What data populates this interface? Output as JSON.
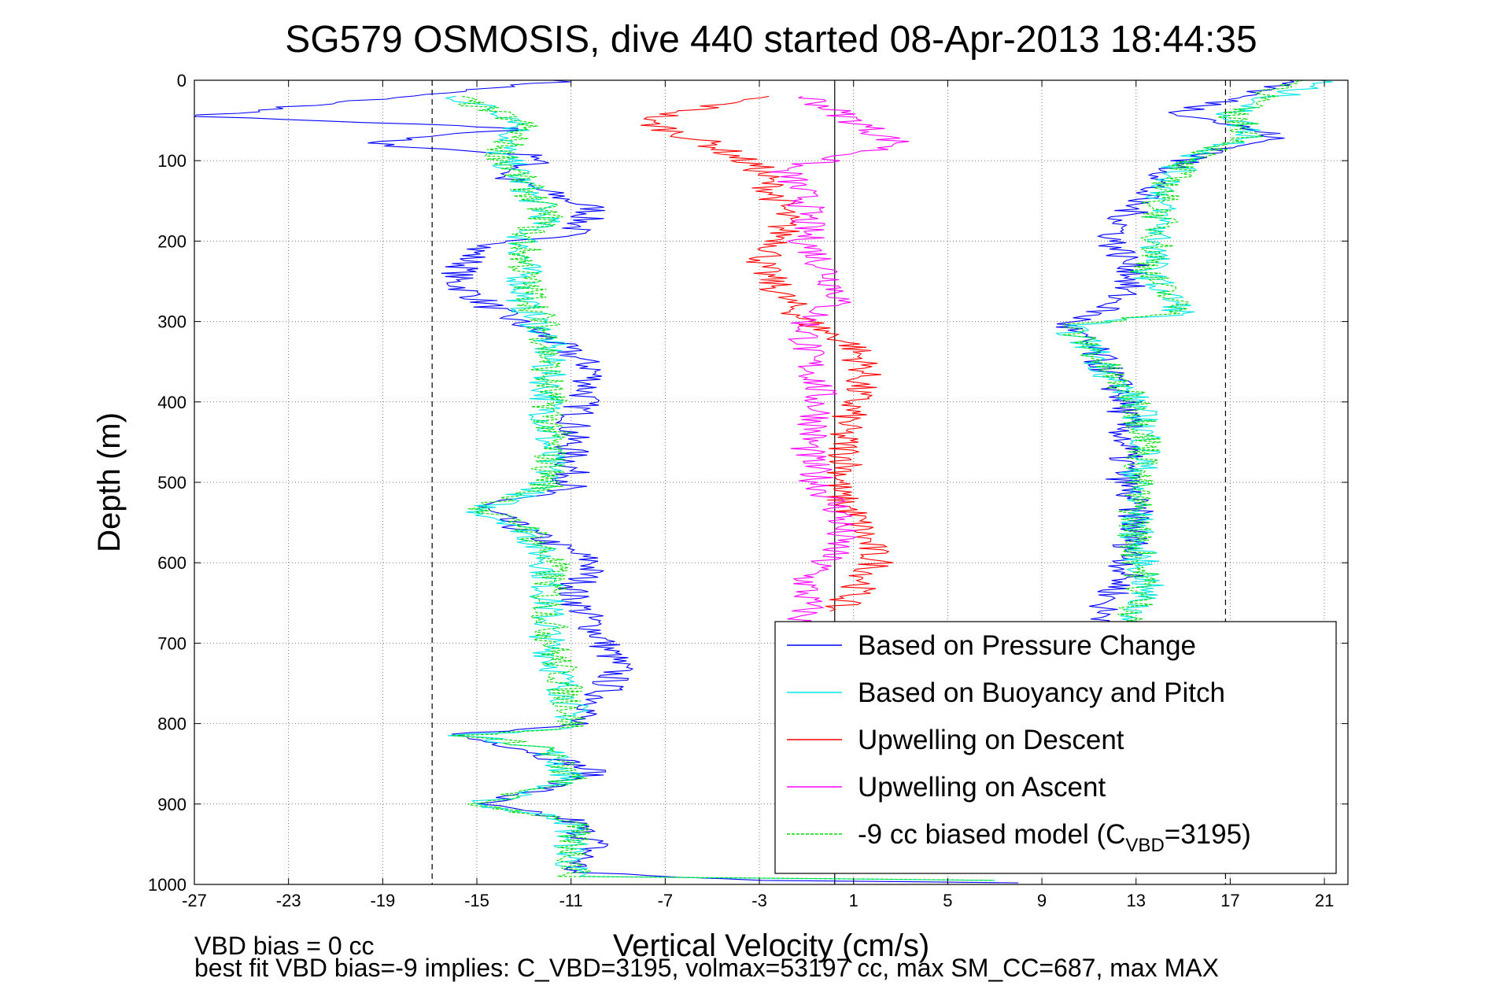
{
  "chart_data": {
    "type": "line",
    "title": "SG579 OSMOSIS, dive 440 started 08-Apr-2013 18:44:35",
    "xlabel": "Vertical Velocity (cm/s)",
    "ylabel": "Depth (m)",
    "xlim": [
      -27,
      22
    ],
    "ylim": [
      0,
      1000
    ],
    "y_reversed": true,
    "xticks": [
      -27,
      -23,
      -19,
      -15,
      -11,
      -7,
      -3,
      1,
      5,
      9,
      13,
      17,
      21
    ],
    "yticks": [
      0,
      100,
      200,
      300,
      400,
      500,
      600,
      700,
      800,
      900,
      1000
    ],
    "grid": true,
    "legend_position": "bottom-right",
    "reference_lines": [
      {
        "x": 0.2,
        "style": "solid"
      },
      {
        "x": -16.9,
        "style": "dashed"
      },
      {
        "x": 16.8,
        "style": "dashed"
      }
    ],
    "series": [
      {
        "name": "Based on Pressure Change",
        "color": "#0000ff",
        "points": [
          [
            -11,
            0
          ],
          [
            -27,
            45
          ],
          [
            -13,
            60
          ],
          [
            -20,
            78
          ],
          [
            -12,
            95
          ],
          [
            -14,
            120
          ],
          [
            -10,
            160
          ],
          [
            -11,
            190
          ],
          [
            -15,
            210
          ],
          [
            -16,
            250
          ],
          [
            -14,
            290
          ],
          [
            -12,
            320
          ],
          [
            -10,
            360
          ],
          [
            -10.5,
            400
          ],
          [
            -11,
            440
          ],
          [
            -11,
            480
          ],
          [
            -11,
            505
          ],
          [
            -15,
            530
          ],
          [
            -13,
            560
          ],
          [
            -10,
            600
          ],
          [
            -11,
            640
          ],
          [
            -10,
            680
          ],
          [
            -9,
            730
          ],
          [
            -10,
            780
          ],
          [
            -11,
            800
          ],
          [
            -16,
            815
          ],
          [
            -13,
            830
          ],
          [
            -10,
            860
          ],
          [
            -12,
            880
          ],
          [
            -15,
            900
          ],
          [
            -11,
            920
          ],
          [
            -10,
            950
          ],
          [
            -11,
            985
          ],
          [
            -3,
            995
          ],
          [
            8,
            998
          ]
        ]
      },
      {
        "name": "Based on Buoyancy and Pitch",
        "color": "#00e5e5",
        "points": [
          [
            -16,
            20
          ],
          [
            -13,
            50
          ],
          [
            -14,
            90
          ],
          [
            -13,
            130
          ],
          [
            -12,
            170
          ],
          [
            -13,
            195
          ],
          [
            -13,
            240
          ],
          [
            -13,
            280
          ],
          [
            -12,
            320
          ],
          [
            -12,
            380
          ],
          [
            -12,
            440
          ],
          [
            -12,
            505
          ],
          [
            -15,
            535
          ],
          [
            -13,
            555
          ],
          [
            -12,
            600
          ],
          [
            -12,
            650
          ],
          [
            -12,
            700
          ],
          [
            -11,
            780
          ],
          [
            -11,
            805
          ],
          [
            -15.5,
            815
          ],
          [
            -12,
            830
          ],
          [
            -11,
            870
          ],
          [
            -15,
            900
          ],
          [
            -11,
            920
          ],
          [
            -11,
            990
          ],
          [
            7,
            995
          ]
        ]
      },
      {
        "name": "Upwelling on Descent",
        "color": "#ff0000",
        "points": [
          [
            -3,
            20
          ],
          [
            -8,
            50
          ],
          [
            -5,
            80
          ],
          [
            -3,
            110
          ],
          [
            -2,
            160
          ],
          [
            -2,
            200
          ],
          [
            -3,
            230
          ],
          [
            -2,
            270
          ],
          [
            -1,
            300
          ],
          [
            1,
            330
          ],
          [
            1.5,
            360
          ],
          [
            1,
            400
          ],
          [
            0.5,
            440
          ],
          [
            0.8,
            480
          ],
          [
            0.2,
            510
          ],
          [
            1,
            540
          ],
          [
            1.5,
            570
          ],
          [
            2,
            600
          ],
          [
            1,
            640
          ],
          [
            0,
            660
          ]
        ]
      },
      {
        "name": "Upwelling on Ascent",
        "color": "#ff00ff",
        "points": [
          [
            -1,
            20
          ],
          [
            1,
            50
          ],
          [
            3,
            80
          ],
          [
            -2,
            110
          ],
          [
            -1,
            150
          ],
          [
            -1,
            200
          ],
          [
            0,
            240
          ],
          [
            0.5,
            270
          ],
          [
            -1,
            300
          ],
          [
            -1,
            340
          ],
          [
            -0.5,
            380
          ],
          [
            -0.5,
            420
          ],
          [
            -1,
            460
          ],
          [
            -0.5,
            500
          ],
          [
            0.5,
            540
          ],
          [
            0.3,
            580
          ],
          [
            -1,
            620
          ],
          [
            -1,
            660
          ],
          [
            -2,
            700
          ]
        ]
      },
      {
        "name": "-9 cc biased model (C",
        "name_sub": "VBD",
        "name_suffix": "=3195)",
        "color": "#00dd00",
        "dashed": true,
        "points": [
          [
            -16,
            20
          ],
          [
            -13,
            55
          ],
          [
            -14,
            90
          ],
          [
            -13,
            130
          ],
          [
            -12,
            170
          ],
          [
            -13,
            195
          ],
          [
            -13,
            240
          ],
          [
            -12.5,
            280
          ],
          [
            -12,
            320
          ],
          [
            -12,
            380
          ],
          [
            -11.8,
            440
          ],
          [
            -12,
            505
          ],
          [
            -15,
            535
          ],
          [
            -12.8,
            555
          ],
          [
            -11.8,
            600
          ],
          [
            -12,
            650
          ],
          [
            -11.8,
            700
          ],
          [
            -11,
            780
          ],
          [
            -11,
            805
          ],
          [
            -15.3,
            815
          ],
          [
            -12,
            830
          ],
          [
            -11,
            870
          ],
          [
            -15,
            900
          ],
          [
            -11,
            920
          ],
          [
            -10.8,
            990
          ],
          [
            7,
            995
          ]
        ]
      },
      {
        "name": "",
        "color": "#0000ff",
        "legend": false,
        "points": [
          [
            20,
            0
          ],
          [
            15,
            40
          ],
          [
            19,
            70
          ],
          [
            15,
            100
          ],
          [
            13,
            150
          ],
          [
            12,
            200
          ],
          [
            13,
            240
          ],
          [
            12,
            280
          ],
          [
            10,
            305
          ],
          [
            11,
            330
          ],
          [
            12,
            370
          ],
          [
            12.5,
            400
          ],
          [
            12.5,
            450
          ],
          [
            12.5,
            500
          ],
          [
            13,
            540
          ],
          [
            12.8,
            580
          ],
          [
            12.5,
            620
          ],
          [
            11.5,
            660
          ],
          [
            12,
            680
          ],
          [
            12,
            700
          ]
        ]
      },
      {
        "name": "",
        "color": "#00e5e5",
        "legend": false,
        "points": [
          [
            21,
            0
          ],
          [
            17,
            40
          ],
          [
            18,
            70
          ],
          [
            15,
            100
          ],
          [
            14,
            150
          ],
          [
            14,
            200
          ],
          [
            13.5,
            240
          ],
          [
            15,
            290
          ],
          [
            10,
            305
          ],
          [
            11,
            330
          ],
          [
            12,
            370
          ],
          [
            13,
            400
          ],
          [
            13.5,
            450
          ],
          [
            13,
            500
          ],
          [
            13,
            540
          ],
          [
            13,
            580
          ],
          [
            13.5,
            620
          ],
          [
            13,
            660
          ],
          [
            13,
            700
          ]
        ]
      },
      {
        "name": "",
        "color": "#00dd00",
        "legend": false,
        "dashed": true,
        "points": [
          [
            20,
            0
          ],
          [
            17,
            40
          ],
          [
            18,
            70
          ],
          [
            15,
            100
          ],
          [
            14,
            150
          ],
          [
            14,
            200
          ],
          [
            13.5,
            240
          ],
          [
            15,
            290
          ],
          [
            10,
            305
          ],
          [
            11,
            330
          ],
          [
            12,
            370
          ],
          [
            13,
            400
          ],
          [
            13.5,
            450
          ],
          [
            13,
            500
          ],
          [
            13,
            540
          ],
          [
            13,
            580
          ],
          [
            13.3,
            620
          ],
          [
            13,
            660
          ],
          [
            13,
            700
          ]
        ]
      }
    ]
  },
  "footer": {
    "line1": "VBD bias = 0 cc",
    "line2": "best fit VBD bias=-9 implies: C_VBD=3195, volmax=53197 cc, max SM_CC=687, max MAX"
  }
}
